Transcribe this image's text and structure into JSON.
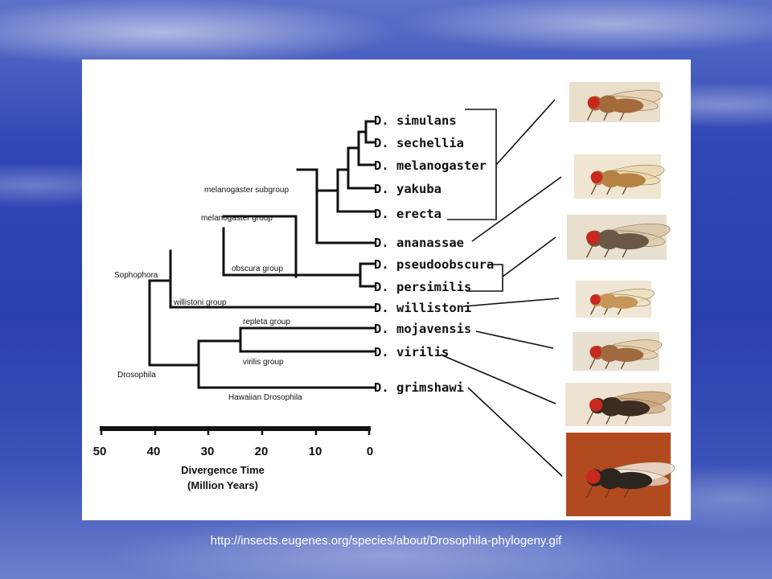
{
  "species": [
    {
      "name": "D. simulans"
    },
    {
      "name": "D. sechellia"
    },
    {
      "name": "D. melanogaster"
    },
    {
      "name": "D. yakuba"
    },
    {
      "name": "D. erecta"
    },
    {
      "name": "D. ananassae"
    },
    {
      "name": "D. pseudoobscura"
    },
    {
      "name": "D. persimilis"
    },
    {
      "name": "D. willistoni"
    },
    {
      "name": "D. mojavensis"
    },
    {
      "name": "D. virilis"
    },
    {
      "name": "D. grimshawi"
    }
  ],
  "groups": {
    "melanogaster_subgroup": "melanogaster subgroup",
    "melanogaster_group": "melanogaster group",
    "obscura_group": "obscura group",
    "sophophora": "Sophophora",
    "willistoni_group": "willistoni group",
    "repleta_group": "repleta group",
    "virilis_group": "virilis group",
    "drosophila": "Drosophila",
    "hawaiian": "Hawaiian Drosophila"
  },
  "axis": {
    "ticks": [
      "50",
      "40",
      "30",
      "20",
      "10",
      "0"
    ],
    "title_line1": "Divergence Time",
    "title_line2": "(Million Years)"
  },
  "photos": [
    {
      "body": "#a36a3a",
      "wing": "#e6d2b4",
      "bg": "#eadfcb"
    },
    {
      "body": "#b58243",
      "wing": "#ead8b0",
      "bg": "#f0e6d2"
    },
    {
      "body": "#6b5745",
      "wing": "#d8c6a8",
      "bg": "#e8dfcf"
    },
    {
      "body": "#c69658",
      "wing": "#efe0c0",
      "bg": "#efe6d6"
    },
    {
      "body": "#9e6a3e",
      "wing": "#e2cca8",
      "bg": "#e9e0d0"
    },
    {
      "body": "#3c2c22",
      "wing": "#c9a57a",
      "bg": "#eee3d3"
    },
    {
      "body": "#2b2520",
      "wing": "#efe8dc",
      "bg": "#b24a1f"
    }
  ],
  "footer": {
    "source": "http://insects.eugenes.org/species/about/Drosophila-phylogeny.gif"
  }
}
